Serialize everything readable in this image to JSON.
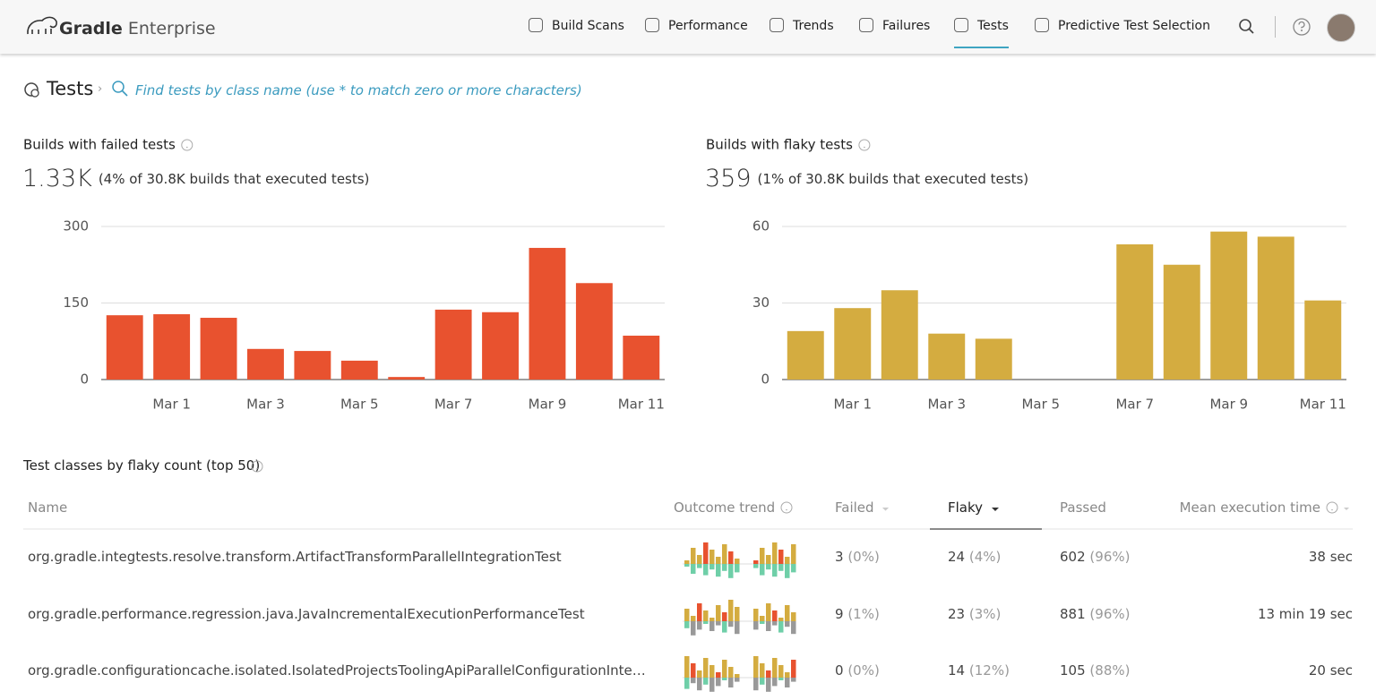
{
  "header": {
    "brand_bold": "Gradle",
    "brand_light": "Enterprise",
    "nav": [
      "Build Scans",
      "Performance",
      "Trends",
      "Failures",
      "Tests",
      "Predictive Test Selection"
    ],
    "active": "Tests"
  },
  "breadcrumb": {
    "title": "Tests",
    "search_placeholder": "Find tests by class name (use * to match zero or more characters)"
  },
  "chart_data": [
    {
      "type": "bar",
      "title": "Builds with failed tests",
      "headline": "1.33K",
      "subtitle": "(4% of 30.8K builds that executed tests)",
      "categories": [
        null,
        "Mar 1",
        null,
        "Mar 3",
        null,
        "Mar 5",
        null,
        "Mar 7",
        null,
        "Mar 9",
        null,
        "Mar 11"
      ],
      "values": [
        126,
        128,
        121,
        60,
        56,
        37,
        5,
        137,
        132,
        258,
        189,
        86
      ],
      "color": "#e8522f",
      "ylim": [
        0,
        300
      ],
      "yticks": [
        0,
        150,
        300
      ],
      "grid": true
    },
    {
      "type": "bar",
      "title": "Builds with flaky tests",
      "headline": "359",
      "subtitle": "(1% of 30.8K builds that executed tests)",
      "categories": [
        null,
        "Mar 1",
        null,
        "Mar 3",
        null,
        "Mar 5",
        null,
        "Mar 7",
        null,
        "Mar 9",
        null,
        "Mar 11"
      ],
      "values": [
        19,
        28,
        35,
        18,
        16,
        0,
        0,
        53,
        45,
        58,
        56,
        31
      ],
      "color": "#d4ac40",
      "ylim": [
        0,
        60
      ],
      "yticks": [
        0,
        30,
        60
      ],
      "grid": true
    }
  ],
  "table": {
    "title": "Test classes by flaky count (top 50)",
    "columns": [
      "Name",
      "Outcome trend",
      "Failed",
      "Flaky",
      "Passed",
      "Mean execution time"
    ],
    "sort_column": "Flaky",
    "rows": [
      [
        "org.gradle.integtests.resolve.transform.ArtifactTransformParallelIntegrationTest",
        "3",
        "(0%)",
        "24",
        "(4%)",
        "602",
        "(96%)",
        "38 sec"
      ],
      [
        "org.gradle.performance.regression.java.JavaIncrementalExecutionPerformanceTest",
        "9",
        "(1%)",
        "23",
        "(3%)",
        "881",
        "(96%)",
        "13 min 19 sec"
      ],
      [
        "org.gradle.configurationcache.isolated.IsolatedProjectsToolingApiParallelConfigurationInte…",
        "0",
        "(0%)",
        "14",
        "(12%)",
        "105",
        "(88%)",
        "20 sec"
      ]
    ]
  }
}
